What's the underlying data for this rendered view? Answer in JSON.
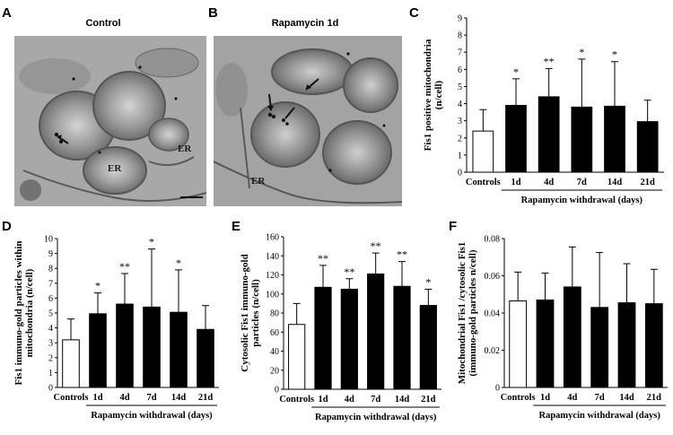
{
  "panels": {
    "A": {
      "letter": "A",
      "title": "Control",
      "annotations": [
        "ER"
      ]
    },
    "B": {
      "letter": "B",
      "title": "Rapamycin 1d",
      "annotations": [
        "ER"
      ]
    }
  },
  "chart_data": [
    {
      "id": "C",
      "letter": "C",
      "type": "bar",
      "categories": [
        "Controls",
        "1d",
        "4d",
        "7d",
        "14d",
        "21d"
      ],
      "values": [
        2.4,
        3.9,
        4.4,
        3.8,
        3.85,
        2.95
      ],
      "errors": [
        1.25,
        1.55,
        1.65,
        2.8,
        2.6,
        1.25
      ],
      "significance": [
        "",
        "*",
        "**",
        "*",
        "*",
        ""
      ],
      "ylabel": "Fis1 positive mitochondria (n/cell)",
      "ylim": [
        0,
        9
      ],
      "yticks": [
        0,
        1,
        2,
        3,
        4,
        5,
        6,
        7,
        8,
        9
      ],
      "xgroup_label": "Rapamycin withdrawal (days)",
      "bar_colors": [
        "#ffffff",
        "#000000",
        "#000000",
        "#000000",
        "#000000",
        "#000000"
      ]
    },
    {
      "id": "D",
      "letter": "D",
      "type": "bar",
      "categories": [
        "Controls",
        "1d",
        "4d",
        "7d",
        "14d",
        "21d"
      ],
      "values": [
        3.2,
        4.95,
        5.6,
        5.4,
        5.05,
        3.9
      ],
      "errors": [
        1.4,
        1.4,
        2.05,
        3.9,
        2.85,
        1.6
      ],
      "significance": [
        "",
        "*",
        "**",
        "*",
        "*",
        ""
      ],
      "ylabel": "Fis1 immuno-gold particles within mitochondria (n/cell)",
      "ylim": [
        0,
        10
      ],
      "yticks": [
        0,
        1,
        2,
        3,
        4,
        5,
        6,
        7,
        8,
        9,
        10
      ],
      "xgroup_label": "Rapamycin withdrawal (days)",
      "bar_colors": [
        "#ffffff",
        "#000000",
        "#000000",
        "#000000",
        "#000000",
        "#000000"
      ]
    },
    {
      "id": "E",
      "letter": "E",
      "type": "bar",
      "categories": [
        "Controls",
        "1d",
        "4d",
        "7d",
        "14d",
        "21d"
      ],
      "values": [
        68,
        107,
        105,
        121,
        108,
        88
      ],
      "errors": [
        22,
        23,
        11,
        22,
        26,
        17
      ],
      "significance": [
        "",
        "**",
        "**",
        "**",
        "**",
        "*"
      ],
      "ylabel": "Cytosolic Fis1 immuno-gold particles (n/cell)",
      "ylim": [
        0,
        160
      ],
      "yticks": [
        0,
        20,
        40,
        60,
        80,
        100,
        120,
        140,
        160
      ],
      "xgroup_label": "Rapamycin withdrawal (days)",
      "bar_colors": [
        "#ffffff",
        "#000000",
        "#000000",
        "#000000",
        "#000000",
        "#000000"
      ]
    },
    {
      "id": "F",
      "letter": "F",
      "type": "bar",
      "categories": [
        "Controls",
        "1d",
        "4d",
        "7d",
        "14d",
        "21d"
      ],
      "values": [
        0.0465,
        0.047,
        0.054,
        0.043,
        0.0455,
        0.045
      ],
      "errors": [
        0.0155,
        0.0145,
        0.0215,
        0.0295,
        0.021,
        0.0185
      ],
      "significance": [
        "",
        "",
        "",
        "",
        "",
        ""
      ],
      "ylabel": "Mitochondrial Fis1 /cytosolic Fis1 (immuno-gold particles n/cell)",
      "ylim": [
        0,
        0.08
      ],
      "yticks": [
        0,
        0.02,
        0.04,
        0.06,
        0.08
      ],
      "ytick_labels": [
        "0",
        "0.02",
        "0.04",
        "0.06",
        "0.08"
      ],
      "xgroup_label": "Rapamycin withdrawal (days)",
      "bar_colors": [
        "#ffffff",
        "#000000",
        "#000000",
        "#000000",
        "#000000",
        "#000000"
      ]
    }
  ]
}
